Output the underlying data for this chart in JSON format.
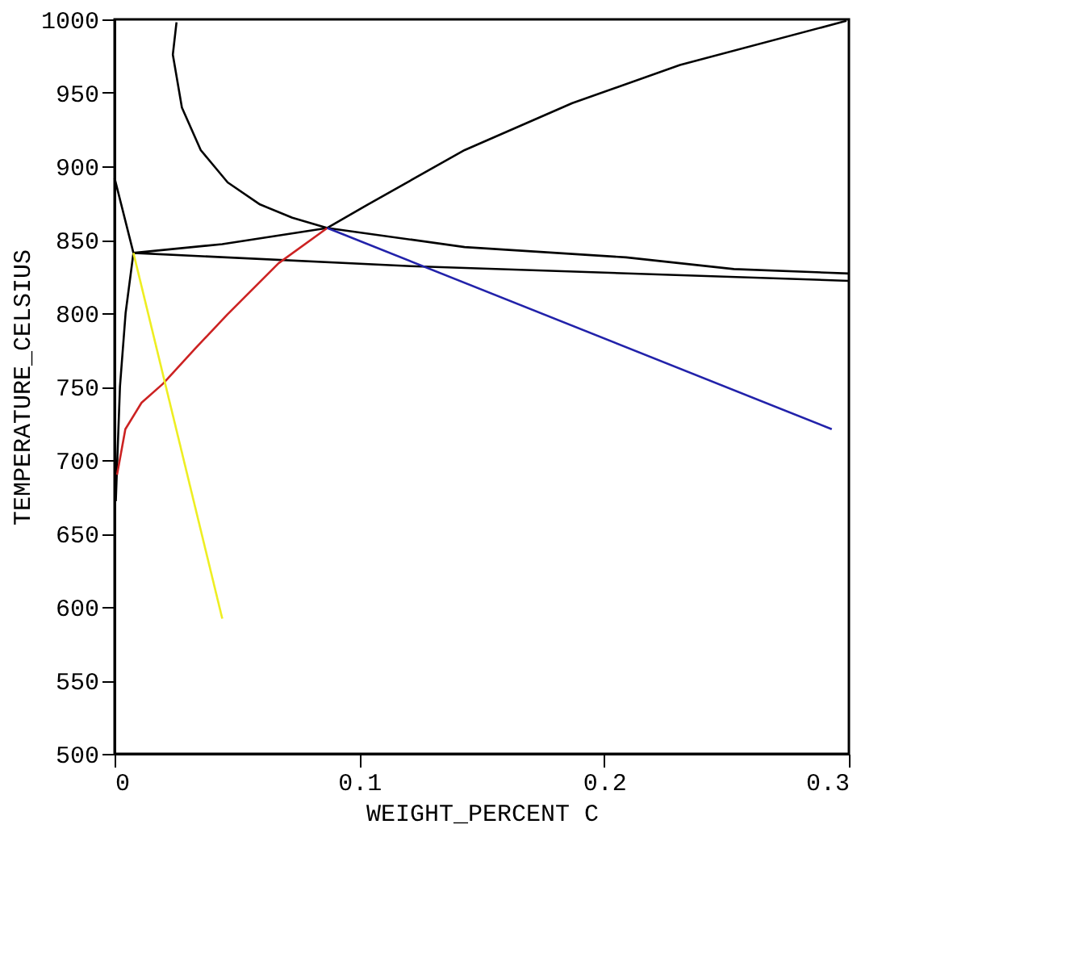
{
  "chart_data": {
    "type": "line",
    "xlabel": "WEIGHT_PERCENT C",
    "ylabel": "TEMPERATURE_CELSIUS",
    "xlim": [
      0,
      0.3
    ],
    "xticks": [
      0,
      0.1,
      0.2,
      0.3
    ],
    "ylim": [
      500,
      1000
    ],
    "yticks": [
      500,
      550,
      600,
      650,
      700,
      750,
      800,
      850,
      900,
      950,
      1000
    ],
    "grid": false,
    "marker": "none",
    "line_style": "solid",
    "series": [
      {
        "color": "#000000",
        "x": [
          0,
          0.0077,
          0.0045,
          0.0022,
          0.0011,
          0.0005
        ],
        "values": [
          892,
          841,
          800,
          750,
          700,
          672
        ]
      },
      {
        "color": "#000000",
        "x": [
          0.0253,
          0.0238,
          0.0275,
          0.0352,
          0.0462,
          0.0594,
          0.0726,
          0.0869
        ],
        "values": [
          998,
          976,
          940,
          911,
          889,
          874,
          865,
          858
        ]
      },
      {
        "color": "#000000",
        "x": [
          0.0869,
          0.1035,
          0.143,
          0.187,
          0.231,
          0.299
        ],
        "values": [
          858,
          874,
          911,
          943,
          969,
          999
        ]
      },
      {
        "color": "#000000",
        "x": [
          0.0077,
          0.044,
          0.0869,
          0.143,
          0.209,
          0.253,
          0.3
        ],
        "values": [
          841,
          847,
          858,
          845,
          838,
          830,
          827
        ]
      },
      {
        "color": "#000000",
        "x": [
          0.0077,
          0.121,
          0.3
        ],
        "values": [
          841,
          832,
          822
        ]
      },
      {
        "color": "#cc2222",
        "x": [
          0.001,
          0.0044,
          0.011,
          0.0198,
          0.033,
          0.046,
          0.067,
          0.0869
        ],
        "values": [
          690,
          721,
          739,
          752,
          776,
          799,
          834,
          858
        ]
      },
      {
        "color": "#eeee22",
        "x": [
          0.0077,
          0.044
        ],
        "values": [
          841,
          592
        ]
      },
      {
        "color": "#2222aa",
        "x": [
          0.0869,
          0.293
        ],
        "values": [
          858,
          721
        ]
      }
    ]
  }
}
